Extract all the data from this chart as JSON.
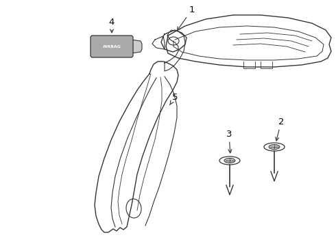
{
  "background_color": "#ffffff",
  "line_color": "#333333",
  "line_width": 1.0,
  "label_fontsize": 9,
  "arrow_color": "#333333",
  "figsize": [
    4.9,
    3.6
  ],
  "dpi": 100
}
